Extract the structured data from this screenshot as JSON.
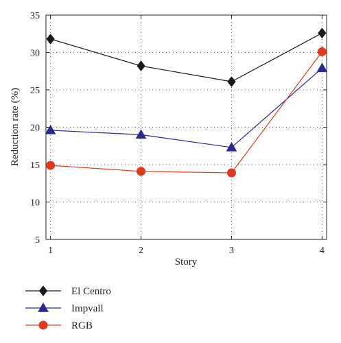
{
  "chart_data": {
    "type": "line",
    "x": [
      1,
      2,
      3,
      4
    ],
    "xticks": [
      "1",
      "2",
      "3",
      "4"
    ],
    "yticks": [
      "5",
      "10",
      "15",
      "20",
      "25",
      "30",
      "35"
    ],
    "xlabel": "Story",
    "ylabel": "Reduction rate (%)",
    "xlim": [
      0.95,
      4.05
    ],
    "ylim": [
      5,
      35
    ],
    "grid": true,
    "grid_style": "dotted",
    "legend_position": "below",
    "series": [
      {
        "name": "El Centro",
        "values": [
          31.8,
          28.2,
          26.1,
          32.6
        ],
        "color": "#1a1a1a",
        "marker": "diamond"
      },
      {
        "name": "Impvall",
        "values": [
          19.6,
          19.0,
          17.3,
          27.9
        ],
        "color": "#2b2a8c",
        "marker": "triangle"
      },
      {
        "name": "RGB",
        "values": [
          14.9,
          14.1,
          13.9,
          30.1
        ],
        "color": "#e03a1e",
        "marker": "circle"
      }
    ]
  }
}
